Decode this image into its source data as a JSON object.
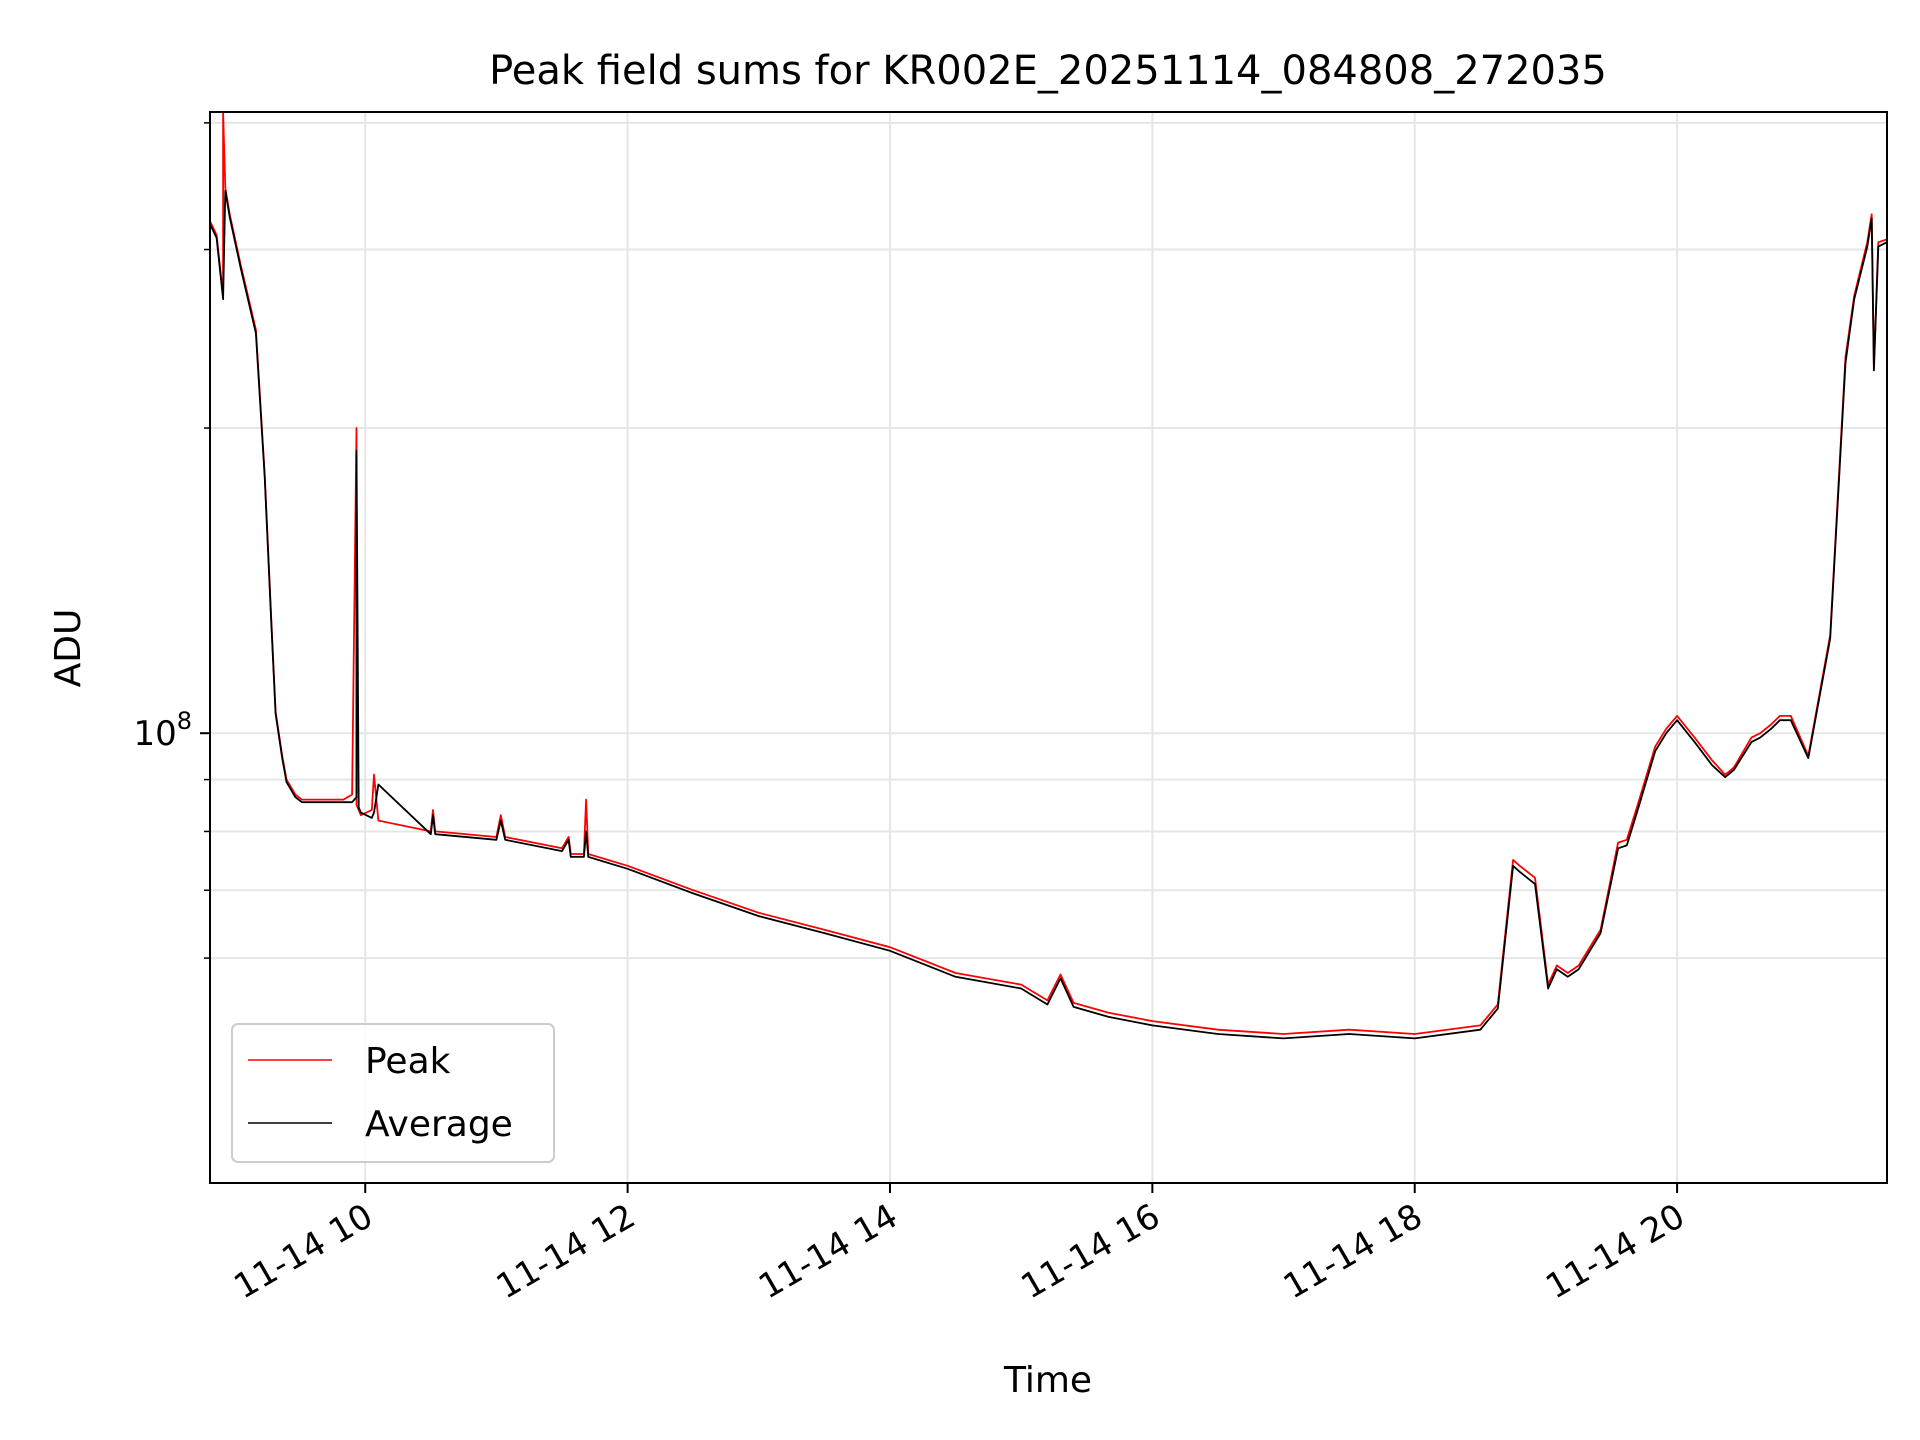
{
  "chart_data": {
    "type": "line",
    "title": "Peak field sums for KR002E_20251114_084808_272035",
    "xlabel": "Time",
    "ylabel": "ADU",
    "yscale": "log",
    "grid": true,
    "legend_position": "lower-left",
    "xlim": [
      "2025-11-14 08:49",
      "2025-11-14 21:36"
    ],
    "ylim": [
      36000000,
      410000000
    ],
    "x_ticks": [
      {
        "x": "2025-11-14 10:00",
        "label": "11-14 10"
      },
      {
        "x": "2025-11-14 12:00",
        "label": "11-14 12"
      },
      {
        "x": "2025-11-14 14:00",
        "label": "11-14 14"
      },
      {
        "x": "2025-11-14 16:00",
        "label": "11-14 16"
      },
      {
        "x": "2025-11-14 18:00",
        "label": "11-14 18"
      },
      {
        "x": "2025-11-14 20:00",
        "label": "11-14 20"
      }
    ],
    "y_major_ticks": [
      {
        "value": 100000000,
        "base": "10",
        "exp": "8"
      }
    ],
    "y_minor_ticks": [
      60000000,
      70000000,
      80000000,
      90000000,
      200000000,
      300000000,
      400000000
    ],
    "series": [
      {
        "name": "Peak",
        "color": "#ff0000",
        "x": [
          "2025-11-14 08:49",
          "2025-11-14 08:52",
          "2025-11-14 08:55",
          "2025-11-14 08:55",
          "2025-11-14 08:56",
          "2025-11-14 08:58",
          "2025-11-14 09:03",
          "2025-11-14 09:10",
          "2025-11-14 09:14",
          "2025-11-14 09:17",
          "2025-11-14 09:19",
          "2025-11-14 09:22",
          "2025-11-14 09:24",
          "2025-11-14 09:28",
          "2025-11-14 09:31",
          "2025-11-14 09:34",
          "2025-11-14 09:38",
          "2025-11-14 09:41",
          "2025-11-14 09:45",
          "2025-11-14 09:50",
          "2025-11-14 09:54",
          "2025-11-14 09:56",
          "2025-11-14 09:56",
          "2025-11-14 09:57",
          "2025-11-14 09:58",
          "2025-11-14 10:03",
          "2025-11-14 10:04",
          "2025-11-14 10:06",
          "2025-11-14 10:30",
          "2025-11-14 10:31",
          "2025-11-14 10:32",
          "2025-11-14 11:00",
          "2025-11-14 11:02",
          "2025-11-14 11:04",
          "2025-11-14 11:30",
          "2025-11-14 11:33",
          "2025-11-14 11:34",
          "2025-11-14 11:40",
          "2025-11-14 11:41",
          "2025-11-14 11:42",
          "2025-11-14 12:00",
          "2025-11-14 12:30",
          "2025-11-14 13:00",
          "2025-11-14 13:30",
          "2025-11-14 14:00",
          "2025-11-14 14:30",
          "2025-11-14 15:00",
          "2025-11-14 15:12",
          "2025-11-14 15:18",
          "2025-11-14 15:24",
          "2025-11-14 15:40",
          "2025-11-14 16:00",
          "2025-11-14 16:30",
          "2025-11-14 17:00",
          "2025-11-14 17:30",
          "2025-11-14 18:00",
          "2025-11-14 18:30",
          "2025-11-14 18:38",
          "2025-11-14 18:45",
          "2025-11-14 18:48",
          "2025-11-14 18:55",
          "2025-11-14 19:01",
          "2025-11-14 19:05",
          "2025-11-14 19:10",
          "2025-11-14 19:15",
          "2025-11-14 19:25",
          "2025-11-14 19:33",
          "2025-11-14 19:37",
          "2025-11-14 19:42",
          "2025-11-14 19:50",
          "2025-11-14 19:55",
          "2025-11-14 20:00",
          "2025-11-14 20:08",
          "2025-11-14 20:16",
          "2025-11-14 20:22",
          "2025-11-14 20:26",
          "2025-11-14 20:34",
          "2025-11-14 20:38",
          "2025-11-14 20:43",
          "2025-11-14 20:47",
          "2025-11-14 20:52",
          "2025-11-14 21:00",
          "2025-11-14 21:10",
          "2025-11-14 21:17",
          "2025-11-14 21:21",
          "2025-11-14 21:27",
          "2025-11-14 21:29",
          "2025-11-14 21:30",
          "2025-11-14 21:32",
          "2025-11-14 21:36"
        ],
        "y": [
          320000000,
          310000000,
          270000000,
          410000000,
          345000000,
          325000000,
          290000000,
          250000000,
          180000000,
          130000000,
          105000000,
          95000000,
          90000000,
          87000000,
          86000000,
          86000000,
          86000000,
          86000000,
          86000000,
          86000000,
          87000000,
          200000000,
          85000000,
          84000000,
          83000000,
          84000000,
          91000000,
          82000000,
          80000000,
          84000000,
          80000000,
          79000000,
          83000000,
          79000000,
          77000000,
          79000000,
          76000000,
          76000000,
          86000000,
          76000000,
          74000000,
          70000000,
          66500000,
          64000000,
          61500000,
          58000000,
          56500000,
          54500000,
          57800000,
          54200000,
          53000000,
          52000000,
          51000000,
          50500000,
          51000000,
          50500000,
          51500000,
          54000000,
          75000000,
          74000000,
          72000000,
          56500000,
          59000000,
          58000000,
          59000000,
          64000000,
          78000000,
          78500000,
          85000000,
          97000000,
          101000000,
          104000000,
          99000000,
          94000000,
          91000000,
          92500000,
          99000000,
          100000000,
          102000000,
          104000000,
          104000000,
          95000000,
          125000000,
          235000000,
          270000000,
          305000000,
          325000000,
          230000000,
          305000000,
          307000000
        ]
      },
      {
        "name": "Average",
        "color": "#000000",
        "x": [
          "2025-11-14 08:49",
          "2025-11-14 08:52",
          "2025-11-14 08:55",
          "2025-11-14 08:56",
          "2025-11-14 08:58",
          "2025-11-14 09:03",
          "2025-11-14 09:10",
          "2025-11-14 09:14",
          "2025-11-14 09:17",
          "2025-11-14 09:19",
          "2025-11-14 09:22",
          "2025-11-14 09:24",
          "2025-11-14 09:28",
          "2025-11-14 09:31",
          "2025-11-14 09:34",
          "2025-11-14 09:38",
          "2025-11-14 09:41",
          "2025-11-14 09:45",
          "2025-11-14 09:50",
          "2025-11-14 09:54",
          "2025-11-14 09:56",
          "2025-11-14 09:56",
          "2025-11-14 09:57",
          "2025-11-14 09:58",
          "2025-11-14 10:03",
          "2025-11-14 10:04",
          "2025-11-14 10:06",
          "2025-11-14 10:30",
          "2025-11-14 10:31",
          "2025-11-14 10:32",
          "2025-11-14 11:00",
          "2025-11-14 11:02",
          "2025-11-14 11:04",
          "2025-11-14 11:30",
          "2025-11-14 11:33",
          "2025-11-14 11:34",
          "2025-11-14 11:40",
          "2025-11-14 11:41",
          "2025-11-14 11:42",
          "2025-11-14 12:00",
          "2025-11-14 12:30",
          "2025-11-14 13:00",
          "2025-11-14 13:30",
          "2025-11-14 14:00",
          "2025-11-14 14:30",
          "2025-11-14 15:00",
          "2025-11-14 15:12",
          "2025-11-14 15:18",
          "2025-11-14 15:24",
          "2025-11-14 15:40",
          "2025-11-14 16:00",
          "2025-11-14 16:30",
          "2025-11-14 17:00",
          "2025-11-14 17:30",
          "2025-11-14 18:00",
          "2025-11-14 18:30",
          "2025-11-14 18:38",
          "2025-11-14 18:45",
          "2025-11-14 18:48",
          "2025-11-14 18:55",
          "2025-11-14 19:01",
          "2025-11-14 19:05",
          "2025-11-14 19:10",
          "2025-11-14 19:15",
          "2025-11-14 19:25",
          "2025-11-14 19:33",
          "2025-11-14 19:37",
          "2025-11-14 19:42",
          "2025-11-14 19:50",
          "2025-11-14 19:55",
          "2025-11-14 20:00",
          "2025-11-14 20:08",
          "2025-11-14 20:16",
          "2025-11-14 20:22",
          "2025-11-14 20:26",
          "2025-11-14 20:34",
          "2025-11-14 20:38",
          "2025-11-14 20:43",
          "2025-11-14 20:47",
          "2025-11-14 20:52",
          "2025-11-14 21:00",
          "2025-11-14 21:10",
          "2025-11-14 21:17",
          "2025-11-14 21:21",
          "2025-11-14 21:27",
          "2025-11-14 21:29",
          "2025-11-14 21:30",
          "2025-11-14 21:32",
          "2025-11-14 21:36"
        ],
        "y": [
          318000000,
          308000000,
          268000000,
          343000000,
          323000000,
          288000000,
          248000000,
          179000000,
          129000000,
          104500000,
          94500000,
          89500000,
          86500000,
          85500000,
          85500000,
          85500000,
          85500000,
          85500000,
          85500000,
          85500000,
          86500000,
          190000000,
          84500000,
          83500000,
          82500000,
          83500000,
          89000000,
          79500000,
          83000000,
          79500000,
          78500000,
          82000000,
          78500000,
          76500000,
          78500000,
          75500000,
          75500000,
          80000000,
          75500000,
          73500000,
          69500000,
          66000000,
          63500000,
          61000000,
          57500000,
          56000000,
          54000000,
          57300000,
          53700000,
          52500000,
          51500000,
          50500000,
          50000000,
          50500000,
          50000000,
          51000000,
          53500000,
          74000000,
          73000000,
          71000000,
          56000000,
          58500000,
          57500000,
          58500000,
          63500000,
          77000000,
          77500000,
          84000000,
          96000000,
          100000000,
          103000000,
          98000000,
          93000000,
          90500000,
          92000000,
          98000000,
          99000000,
          101000000,
          103000000,
          103000000,
          94500000,
          124000000,
          232000000,
          268000000,
          302000000,
          322000000,
          228000000,
          302000000,
          305000000
        ]
      }
    ]
  }
}
